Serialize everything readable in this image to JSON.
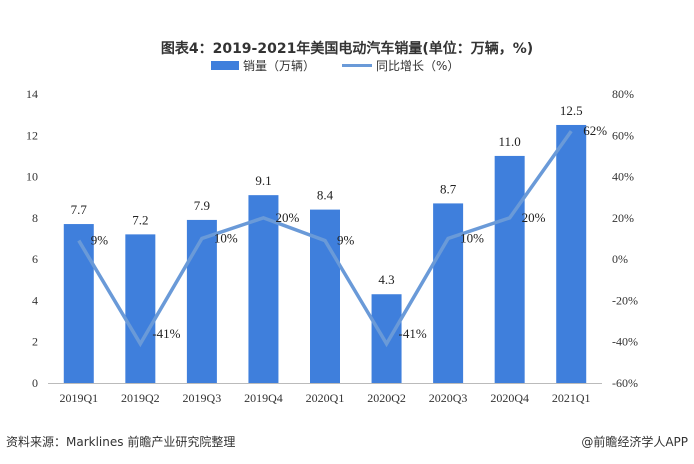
{
  "chart_data": {
    "type": "bar+line",
    "title": "图表4：2019-2021年美国电动汽车销量(单位：万辆，%)",
    "categories": [
      "2019Q1",
      "2019Q2",
      "2019Q3",
      "2019Q4",
      "2020Q1",
      "2020Q2",
      "2020Q3",
      "2020Q4",
      "2021Q1"
    ],
    "series": [
      {
        "name": "销量（万辆）",
        "type": "bar",
        "axis": "left",
        "color": "#3f7fdc",
        "values": [
          7.7,
          7.2,
          7.9,
          9.1,
          8.4,
          4.3,
          8.7,
          11.0,
          12.5
        ],
        "labels": [
          "7.7",
          "7.2",
          "7.9",
          "9.1",
          "8.4",
          "4.3",
          "8.7",
          "11.0",
          "12.5"
        ]
      },
      {
        "name": "同比增长（%）",
        "type": "line",
        "axis": "right",
        "color": "#6a9ad8",
        "values": [
          9,
          -41,
          10,
          20,
          9,
          -41,
          10,
          20,
          62
        ],
        "labels": [
          "9%",
          "-41%",
          "10%",
          "20%",
          "9%",
          "-41%",
          "10%",
          "20%",
          "62%"
        ]
      }
    ],
    "y_left": {
      "range": [
        0,
        14
      ],
      "ticks": [
        "0",
        "2",
        "4",
        "6",
        "8",
        "10",
        "12",
        "14"
      ]
    },
    "y_right": {
      "range": [
        -60,
        80
      ],
      "ticks": [
        "-60%",
        "-40%",
        "-20%",
        "0%",
        "20%",
        "40%",
        "60%",
        "80%"
      ]
    },
    "grid": false,
    "legend_position": "top"
  },
  "footer": {
    "source": "资料来源：Marklines 前瞻产业研究院整理",
    "credit": "@前瞻经济学人APP"
  }
}
